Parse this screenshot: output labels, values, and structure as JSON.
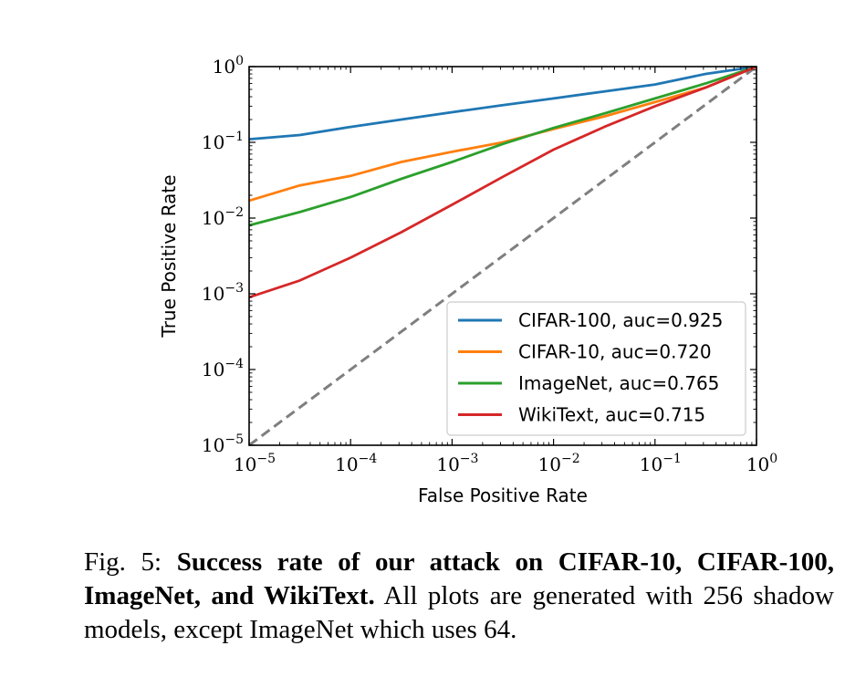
{
  "chart_data": {
    "type": "line",
    "xscale": "log",
    "yscale": "log",
    "xlabel": "False Positive Rate",
    "ylabel": "True Positive Rate",
    "xlim": [
      1e-05,
      1
    ],
    "ylim": [
      1e-05,
      1
    ],
    "x_tick_labels": [
      {
        "base": "10",
        "exp": "−5"
      },
      {
        "base": "10",
        "exp": "−4"
      },
      {
        "base": "10",
        "exp": "−3"
      },
      {
        "base": "10",
        "exp": "−2"
      },
      {
        "base": "10",
        "exp": "−1"
      },
      {
        "base": "10",
        "exp": "0"
      }
    ],
    "y_tick_labels": [
      {
        "base": "10",
        "exp": "−5"
      },
      {
        "base": "10",
        "exp": "−4"
      },
      {
        "base": "10",
        "exp": "−3"
      },
      {
        "base": "10",
        "exp": "−2"
      },
      {
        "base": "10",
        "exp": "−1"
      },
      {
        "base": "10",
        "exp": "0"
      }
    ],
    "legend_position": "bottom-right",
    "grid": false,
    "reference_line": {
      "style": "dashed",
      "color": "#7f7f7f",
      "x": [
        1e-05,
        1
      ],
      "y": [
        1e-05,
        1
      ]
    },
    "series": [
      {
        "name": "CIFAR-100, auc=0.925",
        "color": "#1f77b4",
        "x": [
          1e-05,
          3.16e-05,
          0.0001,
          0.000316,
          0.001,
          0.00316,
          0.01,
          0.0316,
          0.1,
          0.316,
          1
        ],
        "y": [
          0.11,
          0.125,
          0.16,
          0.2,
          0.25,
          0.31,
          0.38,
          0.47,
          0.58,
          0.8,
          1.0
        ]
      },
      {
        "name": "CIFAR-10, auc=0.720",
        "color": "#ff7f0e",
        "x": [
          1e-05,
          3.16e-05,
          0.0001,
          0.000316,
          0.001,
          0.00316,
          0.01,
          0.0316,
          0.1,
          0.316,
          1
        ],
        "y": [
          0.017,
          0.027,
          0.036,
          0.055,
          0.075,
          0.1,
          0.15,
          0.22,
          0.34,
          0.53,
          1.0
        ]
      },
      {
        "name": "ImageNet, auc=0.765",
        "color": "#2ca02c",
        "x": [
          1e-05,
          3.16e-05,
          0.0001,
          0.000316,
          0.001,
          0.00316,
          0.01,
          0.0316,
          0.1,
          0.316,
          1
        ],
        "y": [
          0.008,
          0.012,
          0.019,
          0.033,
          0.055,
          0.095,
          0.155,
          0.24,
          0.38,
          0.6,
          1.0
        ]
      },
      {
        "name": "WikiText, auc=0.715",
        "color": "#d62728",
        "x": [
          1e-05,
          3.16e-05,
          0.0001,
          0.000316,
          0.001,
          0.00316,
          0.01,
          0.0316,
          0.1,
          0.316,
          1
        ],
        "y": [
          0.0009,
          0.0015,
          0.003,
          0.0065,
          0.015,
          0.035,
          0.08,
          0.16,
          0.3,
          0.53,
          1.0
        ]
      }
    ]
  },
  "caption": {
    "prefix": "Fig. 5: ",
    "bold": "Success rate of our attack on CIFAR-10, CIFAR-100, ImageNet, and WikiText.",
    "rest": " All plots are generated with 256 shadow models, except ImageNet which uses 64."
  }
}
